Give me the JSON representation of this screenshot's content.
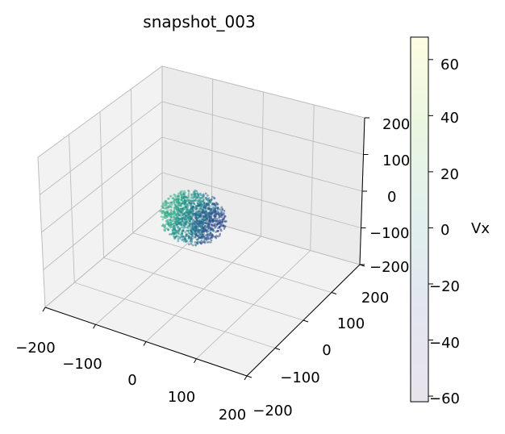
{
  "chart_data": {
    "type": "scatter",
    "projection": "3d",
    "title": "snapshot_003",
    "xlabel": "",
    "ylabel": "",
    "zlabel": "",
    "xlim": [
      -200,
      200
    ],
    "ylim": [
      -200,
      200
    ],
    "zlim": [
      -200,
      200
    ],
    "xticks": [
      "−200",
      "−100",
      "0",
      "100",
      "200"
    ],
    "yticks": [
      "−200",
      "−100",
      "0",
      "100",
      "200"
    ],
    "zticks": [
      "−200",
      "−100",
      "0",
      "100",
      "200"
    ],
    "grid": true,
    "colormap": "viridis",
    "point_alpha": 0.2,
    "cloud": {
      "center": [
        -10,
        -10,
        0
      ],
      "radius": 58,
      "approx_points": 1400,
      "color_gradient": "low x is teal/green, high x is dark blue"
    },
    "colorbar": {
      "label": "Vx",
      "range": [
        -62,
        68
      ],
      "ticks": [
        "60",
        "40",
        "20",
        "0",
        "−20",
        "−40",
        "−60"
      ]
    }
  }
}
